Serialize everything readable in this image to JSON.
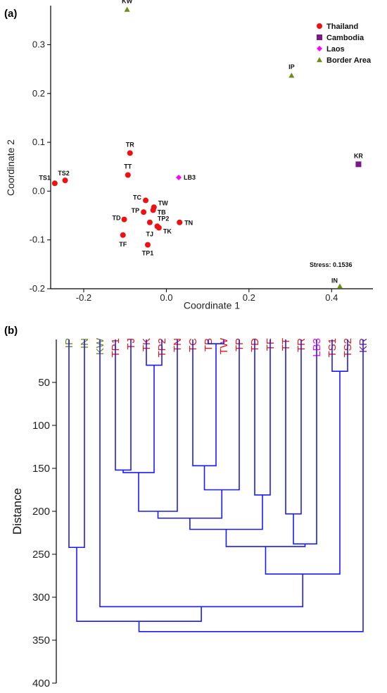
{
  "colors": {
    "Thailand": "#ee1111",
    "Cambodia": "#7b1a86",
    "Laos": "#ff00ff",
    "Border Area": "#6f8c1a",
    "dendrogram": "#1a1aff"
  },
  "chart_data": [
    {
      "panel": "(a)",
      "type": "scatter",
      "xlabel": "Coordinate 1",
      "ylabel": "Coordinate 2",
      "xlim": [
        -0.28,
        0.5
      ],
      "ylim": [
        -0.2,
        0.38
      ],
      "xticks": [
        "-0.2",
        "0.0",
        "0.2",
        "0.4"
      ],
      "xtick_values": [
        -0.2,
        0.0,
        0.2,
        0.4
      ],
      "yticks": [
        "0.3",
        "0.2",
        "0.1",
        "0.0",
        "-0.1",
        "-0.2"
      ],
      "ytick_values": [
        0.3,
        0.2,
        0.1,
        0.0,
        -0.1,
        -0.2
      ],
      "legend": [
        "Thailand",
        "Cambodia",
        "Laos",
        "Border Area"
      ],
      "legend_position": "top-right",
      "annotation": "Stress: 0.1536",
      "points": [
        {
          "label": "KW",
          "group": "Border Area",
          "x": -0.095,
          "y": 0.372
        },
        {
          "label": "IP",
          "group": "Border Area",
          "x": 0.303,
          "y": 0.237
        },
        {
          "label": "IN",
          "group": "Border Area",
          "x": 0.42,
          "y": -0.195
        },
        {
          "label": "KR",
          "group": "Cambodia",
          "x": 0.465,
          "y": 0.055
        },
        {
          "label": "LB3",
          "group": "Laos",
          "x": 0.03,
          "y": 0.028
        },
        {
          "label": "TS1",
          "group": "Thailand",
          "x": -0.27,
          "y": 0.016
        },
        {
          "label": "TS2",
          "group": "Thailand",
          "x": -0.245,
          "y": 0.022
        },
        {
          "label": "TR",
          "group": "Thailand",
          "x": -0.088,
          "y": 0.078
        },
        {
          "label": "TT",
          "group": "Thailand",
          "x": -0.093,
          "y": 0.033
        },
        {
          "label": "TC",
          "group": "Thailand",
          "x": -0.05,
          "y": -0.019
        },
        {
          "label": "TW",
          "group": "Thailand",
          "x": -0.03,
          "y": -0.033
        },
        {
          "label": "TP",
          "group": "Thailand",
          "x": -0.055,
          "y": -0.043
        },
        {
          "label": "TB",
          "group": "Thailand",
          "x": -0.032,
          "y": -0.039
        },
        {
          "label": "TD",
          "group": "Thailand",
          "x": -0.102,
          "y": -0.058
        },
        {
          "label": "TP2",
          "group": "Thailand",
          "x": -0.04,
          "y": -0.064
        },
        {
          "label": "TN",
          "group": "Thailand",
          "x": 0.032,
          "y": -0.064
        },
        {
          "label": "TJ",
          "group": "Thailand",
          "x": -0.022,
          "y": -0.072
        },
        {
          "label": "TK",
          "group": "Thailand",
          "x": -0.018,
          "y": -0.075
        },
        {
          "label": "TF",
          "group": "Thailand",
          "x": -0.105,
          "y": -0.09
        },
        {
          "label": "TP1",
          "group": "Thailand",
          "x": -0.045,
          "y": -0.11
        }
      ]
    },
    {
      "panel": "(b)",
      "type": "dendrogram",
      "ylabel": "Distance",
      "ylim": [
        0,
        400
      ],
      "yticks": [
        "50",
        "100",
        "150",
        "200",
        "250",
        "300",
        "350",
        "400"
      ],
      "ytick_values": [
        50,
        100,
        150,
        200,
        250,
        300,
        350,
        400
      ],
      "leaves": [
        {
          "label": "IP",
          "group": "Border Area"
        },
        {
          "label": "IN",
          "group": "Border Area"
        },
        {
          "label": "KW",
          "group": "Border Area"
        },
        {
          "label": "TP1",
          "group": "Thailand"
        },
        {
          "label": "TJ",
          "group": "Thailand"
        },
        {
          "label": "TK",
          "group": "Thailand"
        },
        {
          "label": "TP2",
          "group": "Thailand"
        },
        {
          "label": "TN",
          "group": "Thailand"
        },
        {
          "label": "TC",
          "group": "Thailand"
        },
        {
          "label": "TB",
          "group": "Thailand"
        },
        {
          "label": "TW",
          "group": "Thailand"
        },
        {
          "label": "TP",
          "group": "Thailand"
        },
        {
          "label": "TD",
          "group": "Thailand"
        },
        {
          "label": "TF",
          "group": "Thailand"
        },
        {
          "label": "TT",
          "group": "Thailand"
        },
        {
          "label": "TR",
          "group": "Thailand"
        },
        {
          "label": "LB3",
          "group": "Laos"
        },
        {
          "label": "TS1",
          "group": "Thailand"
        },
        {
          "label": "TS2",
          "group": "Thailand"
        },
        {
          "label": "KR",
          "group": "Cambodia"
        }
      ],
      "merges": [
        {
          "id": "m1",
          "a": "TB",
          "b": "TW",
          "height": 5
        },
        {
          "id": "m2",
          "a": "TK",
          "b": "TP2",
          "height": 30
        },
        {
          "id": "m3",
          "a": "TS1",
          "b": "TS2",
          "height": 37
        },
        {
          "id": "m4",
          "a": "TC",
          "b": "m1",
          "height": 147
        },
        {
          "id": "m5",
          "a": "TP1",
          "b": "TJ",
          "height": 152
        },
        {
          "id": "m6",
          "a": "m5",
          "b": "m2",
          "height": 155
        },
        {
          "id": "m7",
          "a": "m4",
          "b": "TP",
          "height": 175
        },
        {
          "id": "m8",
          "a": "TD",
          "b": "TF",
          "height": 181
        },
        {
          "id": "m9",
          "a": "m6",
          "b": "TN",
          "height": 200
        },
        {
          "id": "m10",
          "a": "TT",
          "b": "TR",
          "height": 203
        },
        {
          "id": "m11",
          "a": "m9",
          "b": "m7",
          "height": 208
        },
        {
          "id": "m12",
          "a": "m11",
          "b": "m8",
          "height": 221
        },
        {
          "id": "m13",
          "a": "m10",
          "b": "LB3",
          "height": 238
        },
        {
          "id": "m14",
          "a": "m12",
          "b": "m13",
          "height": 241
        },
        {
          "id": "m15",
          "a": "IP",
          "b": "IN",
          "height": 242
        },
        {
          "id": "m16",
          "a": "m14",
          "b": "m3",
          "height": 273
        },
        {
          "id": "m17",
          "a": "KW",
          "b": "m16",
          "height": 311
        },
        {
          "id": "m18",
          "a": "m15",
          "b": "m17",
          "height": 328
        },
        {
          "id": "m19",
          "a": "m18",
          "b": "KR",
          "height": 340
        }
      ]
    }
  ]
}
